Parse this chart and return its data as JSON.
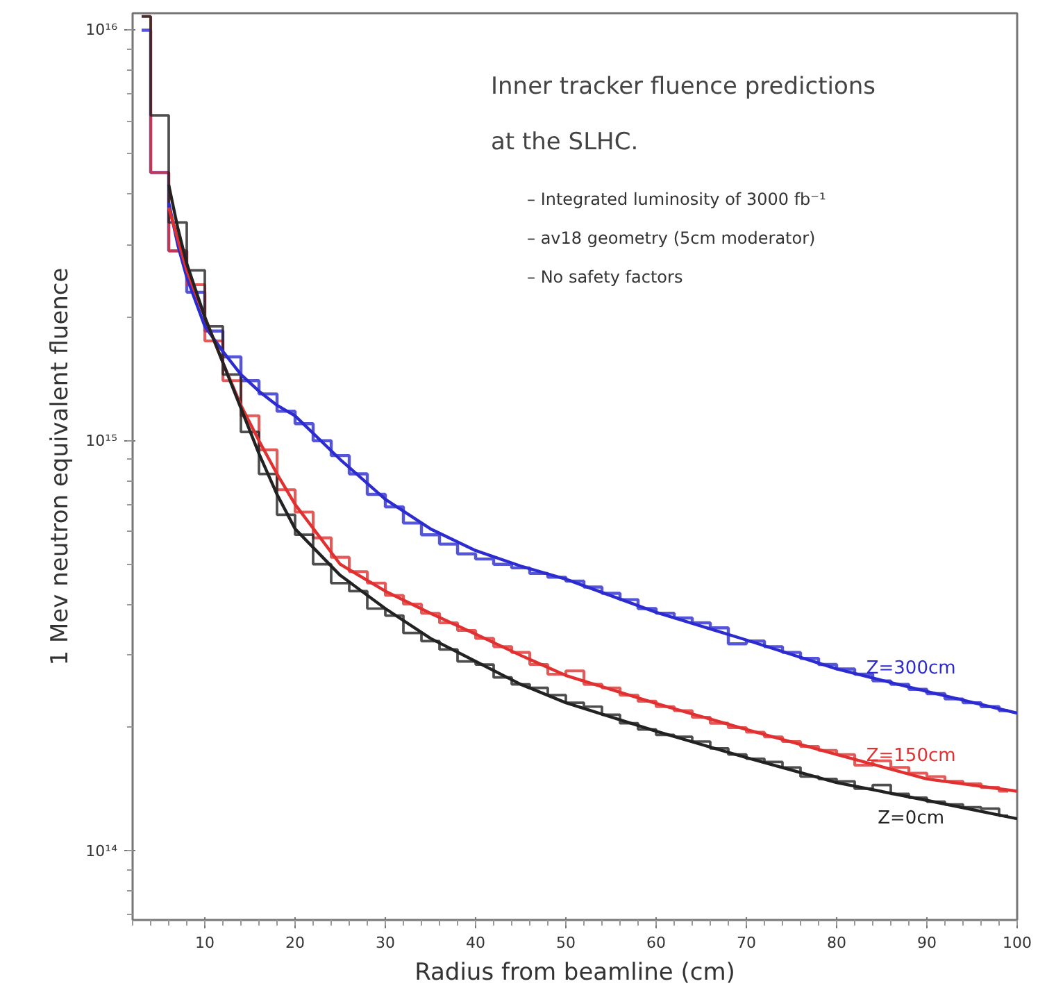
{
  "chart_data": {
    "type": "line",
    "title": "Inner tracker fluence predictions\nat the SLHC.",
    "xlabel": "Radius from beamline (cm)",
    "ylabel": "1 Mev neutron equivalent fluence",
    "annotations": [
      "–  Integrated luminosity of 3000 fb⁻¹",
      "–  av18 geometry (5cm moderator)",
      "–  No safety factors"
    ],
    "log": "y",
    "grid": false,
    "xlim": [
      2,
      100
    ],
    "xticks": [
      10,
      20,
      30,
      40,
      50,
      60,
      70,
      80,
      90,
      100
    ],
    "ylim": [
      68000000000000.0,
      1.1e+16
    ],
    "yticks": [
      {
        "value": 100000000000000.0,
        "label": "10¹⁴"
      },
      {
        "value": 1000000000000000.0,
        "label": "10¹⁵"
      },
      {
        "value": 1e+16,
        "label": "10¹⁶"
      }
    ],
    "x": [
      3,
      5,
      7,
      9,
      11,
      13,
      15,
      17,
      19,
      21,
      23,
      25,
      27,
      29,
      31,
      33,
      35,
      37,
      39,
      41,
      43,
      45,
      47,
      49,
      51,
      53,
      55,
      57,
      59,
      61,
      63,
      65,
      67,
      69,
      71,
      73,
      75,
      77,
      79,
      81,
      83,
      85,
      87,
      89,
      91,
      93,
      95,
      97,
      99
    ],
    "series": [
      {
        "type": "step",
        "color": "#2b2bd0",
        "values": [
          1e+16,
          4500000000000000.0,
          2900000000000000.0,
          2300000000000000.0,
          1850000000000000.0,
          1600000000000000.0,
          1400000000000000.0,
          1300000000000000.0,
          1180000000000000.0,
          1100000000000000.0,
          1000000000000000.0,
          920000000000000.0,
          830000000000000.0,
          740000000000000.0,
          690000000000000.0,
          630000000000000.0,
          590000000000000.0,
          560000000000000.0,
          530000000000000.0,
          515000000000000.0,
          500000000000000.0,
          490000000000000.0,
          475000000000000.0,
          465000000000000.0,
          455000000000000.0,
          440000000000000.0,
          425000000000000.0,
          410000000000000.0,
          390000000000000.0,
          380000000000000.0,
          370000000000000.0,
          360000000000000.0,
          350000000000000.0,
          320000000000000.0,
          325000000000000.0,
          315000000000000.0,
          305000000000000.0,
          295000000000000.0,
          285000000000000.0,
          278000000000000.0,
          270000000000000.0,
          260000000000000.0,
          255000000000000.0,
          248000000000000.0,
          242000000000000.0,
          235000000000000.0,
          230000000000000.0,
          225000000000000.0,
          220000000000000.0
        ]
      },
      {
        "type": "step",
        "color": "#e03030",
        "values": [
          1.08e+16,
          4500000000000000.0,
          2900000000000000.0,
          2400000000000000.0,
          1750000000000000.0,
          1400000000000000.0,
          1150000000000000.0,
          950000000000000.0,
          760000000000000.0,
          670000000000000.0,
          580000000000000.0,
          520000000000000.0,
          480000000000000.0,
          450000000000000.0,
          420000000000000.0,
          400000000000000.0,
          380000000000000.0,
          360000000000000.0,
          345000000000000.0,
          330000000000000.0,
          315000000000000.0,
          305000000000000.0,
          285000000000000.0,
          270000000000000.0,
          275000000000000.0,
          255000000000000.0,
          250000000000000.0,
          240000000000000.0,
          232000000000000.0,
          225000000000000.0,
          220000000000000.0,
          212000000000000.0,
          205000000000000.0,
          200000000000000.0,
          195000000000000.0,
          190000000000000.0,
          185000000000000.0,
          180000000000000.0,
          176000000000000.0,
          172000000000000.0,
          162000000000000.0,
          166000000000000.0,
          160000000000000.0,
          155000000000000.0,
          152000000000000.0,
          148000000000000.0,
          146000000000000.0,
          143000000000000.0,
          140000000000000.0
        ]
      },
      {
        "type": "step",
        "color": "#222222",
        "values": [
          1.08e+16,
          6200000000000000.0,
          3400000000000000.0,
          2600000000000000.0,
          1900000000000000.0,
          1450000000000000.0,
          1050000000000000.0,
          830000000000000.0,
          660000000000000.0,
          590000000000000.0,
          500000000000000.0,
          450000000000000.0,
          430000000000000.0,
          390000000000000.0,
          375000000000000.0,
          340000000000000.0,
          325000000000000.0,
          310000000000000.0,
          290000000000000.0,
          285000000000000.0,
          265000000000000.0,
          255000000000000.0,
          250000000000000.0,
          240000000000000.0,
          230000000000000.0,
          225000000000000.0,
          215000000000000.0,
          205000000000000.0,
          198000000000000.0,
          192000000000000.0,
          190000000000000.0,
          185000000000000.0,
          178000000000000.0,
          172000000000000.0,
          168000000000000.0,
          165000000000000.0,
          160000000000000.0,
          152000000000000.0,
          150000000000000.0,
          148000000000000.0,
          142000000000000.0,
          145000000000000.0,
          138000000000000.0,
          135000000000000.0,
          132000000000000.0,
          130000000000000.0,
          128000000000000.0,
          127000000000000.0,
          122000000000000.0
        ]
      },
      {
        "name": "Z=300cm",
        "color": "#2b2bd0",
        "x": [
          6,
          7,
          8,
          10,
          12,
          14,
          16,
          18,
          20,
          25,
          30,
          35,
          40,
          45,
          50,
          60,
          70,
          80,
          90,
          100
        ],
        "values": [
          3800000000000000.0,
          3000000000000000.0,
          2500000000000000.0,
          1900000000000000.0,
          1650000000000000.0,
          1450000000000000.0,
          1320000000000000.0,
          1220000000000000.0,
          1150000000000000.0,
          900000000000000.0,
          720000000000000.0,
          610000000000000.0,
          540000000000000.0,
          495000000000000.0,
          460000000000000.0,
          382000000000000.0,
          327000000000000.0,
          278000000000000.0,
          245000000000000.0,
          217000000000000.0
        ]
      },
      {
        "name": "Z=150cm",
        "color": "#e03030",
        "x": [
          6,
          7,
          8,
          10,
          12,
          14,
          16,
          18,
          20,
          25,
          30,
          35,
          40,
          45,
          50,
          60,
          70,
          80,
          90,
          100
        ],
        "values": [
          3700000000000000.0,
          3100000000000000.0,
          2600000000000000.0,
          2000000000000000.0,
          1550000000000000.0,
          1220000000000000.0,
          1000000000000000.0,
          830000000000000.0,
          700000000000000.0,
          500000000000000.0,
          430000000000000.0,
          380000000000000.0,
          338000000000000.0,
          300000000000000.0,
          268000000000000.0,
          229000000000000.0,
          198000000000000.0,
          172000000000000.0,
          150000000000000.0,
          140000000000000.0
        ]
      },
      {
        "name": "Z=0cm",
        "color": "#222222",
        "x": [
          6,
          7,
          8,
          10,
          12,
          14,
          16,
          18,
          20,
          25,
          30,
          35,
          40,
          45,
          50,
          60,
          70,
          80,
          90,
          100
        ],
        "values": [
          4200000000000000.0,
          3300000000000000.0,
          2700000000000000.0,
          2000000000000000.0,
          1550000000000000.0,
          1200000000000000.0,
          930000000000000.0,
          740000000000000.0,
          610000000000000.0,
          470000000000000.0,
          390000000000000.0,
          330000000000000.0,
          290000000000000.0,
          255000000000000.0,
          230000000000000.0,
          196000000000000.0,
          169000000000000.0,
          147000000000000.0,
          133000000000000.0,
          120000000000000.0
        ]
      }
    ]
  }
}
